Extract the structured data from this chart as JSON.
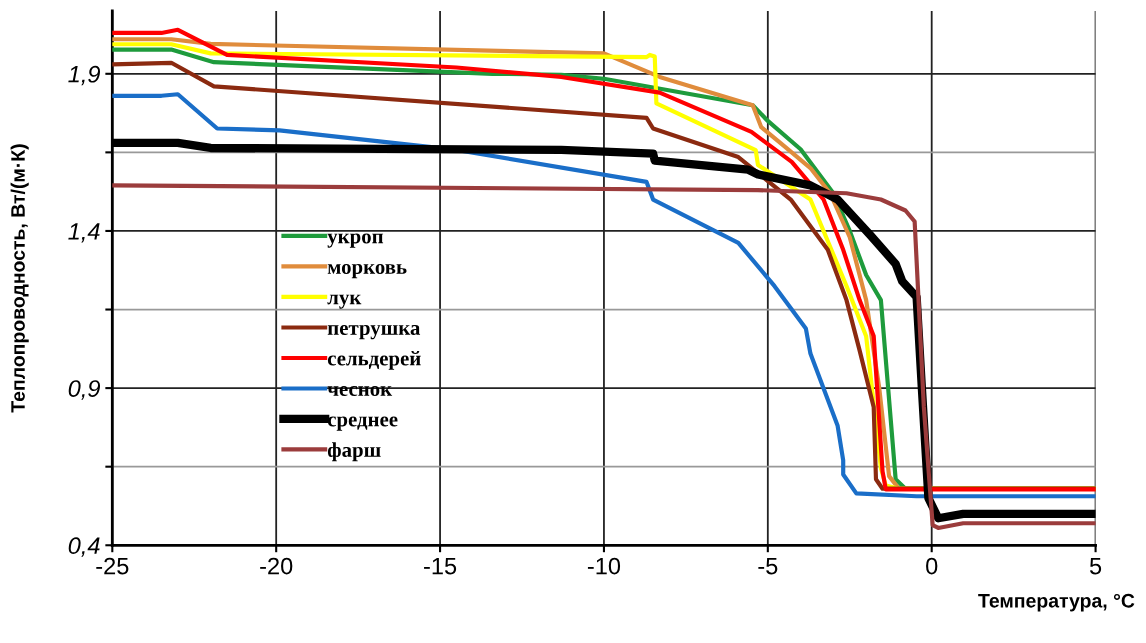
{
  "chart_data": {
    "type": "line",
    "xlabel": "Температура, °C",
    "ylabel": "Теплопроводность, Вт/(м·К)",
    "xlim": [
      -25,
      5
    ],
    "xticks": [
      -25,
      -20,
      -15,
      -10,
      -5,
      0,
      5
    ],
    "ylim": [
      0.4,
      2.1
    ],
    "yticks": [
      {
        "value": 0.4,
        "label": "0,4"
      },
      {
        "value": 0.65,
        "label": null
      },
      {
        "value": 0.9,
        "label": "0,9"
      },
      {
        "value": 1.15,
        "label": null
      },
      {
        "value": 1.4,
        "label": "1,4"
      },
      {
        "value": 1.65,
        "label": null
      },
      {
        "value": 1.9,
        "label": "1,9"
      }
    ],
    "grid": true,
    "legend": "left",
    "marker": "none",
    "line_style": "solid",
    "series": [
      {
        "name": "укроп",
        "color": "#1e9b3c",
        "x": [
          -25,
          -23.2,
          -21.9,
          -13.4,
          -11.3,
          -10,
          -5.46,
          -5,
          -4,
          -3,
          -2.5,
          -2,
          -1.55,
          -1.1,
          -0.8,
          5
        ],
        "values": [
          1.977,
          1.977,
          1.937,
          1.9,
          1.897,
          1.884,
          1.8,
          1.75,
          1.66,
          1.52,
          1.4,
          1.26,
          1.18,
          0.61,
          0.58,
          0.58
        ]
      },
      {
        "name": "морковь",
        "color": "#e08c3c",
        "x": [
          -25,
          -23.2,
          -22,
          -10,
          -8.3,
          -5.46,
          -5.2,
          -4.5,
          -3.7,
          -3.1,
          -2.5,
          -2,
          -1.6,
          -1.3,
          -1,
          5
        ],
        "values": [
          2.01,
          2.01,
          1.995,
          1.965,
          1.89,
          1.8,
          1.73,
          1.67,
          1.6,
          1.52,
          1.38,
          1.18,
          0.9,
          0.62,
          0.58,
          0.58
        ]
      },
      {
        "name": "лук",
        "color": "#ffff00",
        "x": [
          -25,
          -23.2,
          -22,
          -8.7,
          -8.6,
          -8.45,
          -8.4,
          -5.37,
          -5.3,
          -3.7,
          -2.6,
          -2,
          -1.55,
          -1.4,
          -1,
          5
        ],
        "values": [
          1.994,
          1.994,
          1.965,
          1.953,
          1.96,
          1.955,
          1.806,
          1.657,
          1.61,
          1.5,
          1.225,
          1.065,
          0.645,
          0.59,
          0.58,
          0.58
        ]
      },
      {
        "name": "петрушка",
        "color": "#8b2a10",
        "x": [
          -25,
          -23.2,
          -21.9,
          -8.7,
          -8.5,
          -5.9,
          -4.3,
          -3.17,
          -2.6,
          -2.2,
          -1.77,
          -1.7,
          -1.5,
          5
        ],
        "values": [
          1.93,
          1.935,
          1.86,
          1.76,
          1.726,
          1.635,
          1.5,
          1.34,
          1.18,
          1.02,
          0.84,
          0.61,
          0.58,
          0.58
        ]
      },
      {
        "name": "сельдерей",
        "color": "#ff0000",
        "x": [
          -25,
          -23.5,
          -23,
          -21.5,
          -14.5,
          -11.3,
          -8.3,
          -5.5,
          -4.27,
          -3.3,
          -2.7,
          -2.2,
          -1.77,
          -1.5,
          -1.4,
          5
        ],
        "values": [
          2.03,
          2.03,
          2.04,
          1.96,
          1.92,
          1.89,
          1.84,
          1.715,
          1.62,
          1.5,
          1.34,
          1.18,
          1.066,
          0.635,
          0.578,
          0.578
        ]
      },
      {
        "name": "чеснок",
        "color": "#1a6ec8",
        "x": [
          -25,
          -23.5,
          -23,
          -21.8,
          -19.9,
          -14.5,
          -8.7,
          -8.5,
          -5.9,
          -4.8,
          -3.84,
          -3.7,
          -2.87,
          -2.7,
          -2.7,
          -2.3,
          -0.46,
          5
        ],
        "values": [
          1.83,
          1.83,
          1.835,
          1.726,
          1.72,
          1.658,
          1.556,
          1.5,
          1.362,
          1.225,
          1.09,
          1.01,
          0.78,
          0.67,
          0.625,
          0.565,
          0.556,
          0.556
        ]
      },
      {
        "name": "среднее",
        "color": "#000000",
        "x": [
          -25,
          -23,
          -22,
          -11.3,
          -8.5,
          -8.45,
          -5.6,
          -5.3,
          -3.7,
          -2.87,
          -1.86,
          -1.1,
          -0.9,
          -0.46,
          -0.3,
          -0.1,
          0.2,
          0.96,
          5
        ],
        "values": [
          1.68,
          1.68,
          1.664,
          1.658,
          1.646,
          1.624,
          1.595,
          1.58,
          1.545,
          1.5,
          1.385,
          1.295,
          1.24,
          1.19,
          0.9,
          0.55,
          0.486,
          0.5,
          0.5
        ]
      },
      {
        "name": "фарш",
        "color": "#9b3c3c",
        "x": [
          -25,
          -5.3,
          -2.6,
          -1.55,
          -0.8,
          -0.52,
          -0.24,
          0.03,
          0.2,
          0.96,
          5
        ],
        "values": [
          1.545,
          1.53,
          1.52,
          1.5,
          1.465,
          1.43,
          0.84,
          0.464,
          0.455,
          0.47,
          0.47
        ]
      }
    ]
  }
}
